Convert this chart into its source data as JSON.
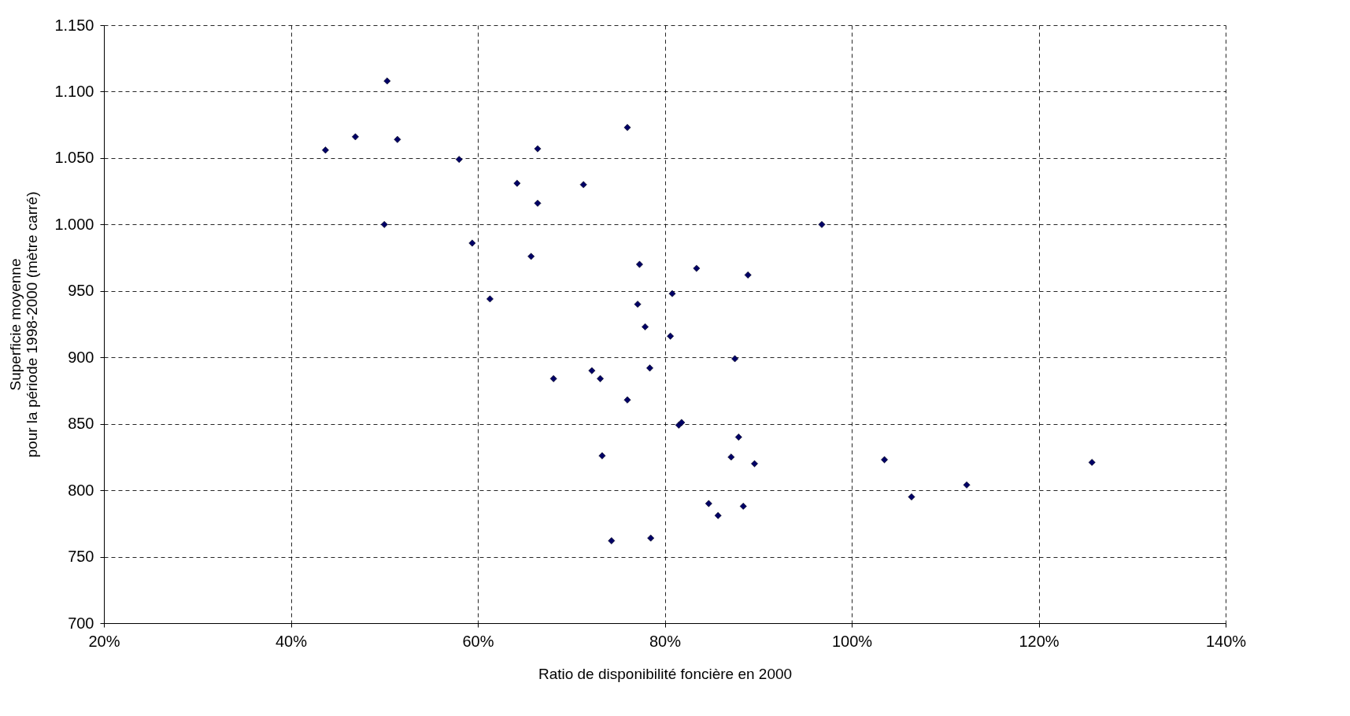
{
  "chart_data": {
    "type": "scatter",
    "xlabel": "Ratio de disponibilité foncière en 2000",
    "ylabel": "Superficie moyenne\npour la période 1998-2000 (mètre carré)",
    "x": [
      50.3,
      43.7,
      46.9,
      51.4,
      58.0,
      50.0,
      59.4,
      76.0,
      66.4,
      64.2,
      71.3,
      66.4,
      96.8,
      65.7,
      77.3,
      83.4,
      88.9,
      61.3,
      80.8,
      77.1,
      77.9,
      80.6,
      87.5,
      68.1,
      72.2,
      73.1,
      78.4,
      76.0,
      81.5,
      81.8,
      87.9,
      87.1,
      89.6,
      73.3,
      84.7,
      85.7,
      88.4,
      74.3,
      78.5,
      103.5,
      106.4,
      112.3,
      125.7
    ],
    "series": [
      {
        "color": "#000066",
        "values": [
          1108,
          1056,
          1066,
          1064,
          1049,
          1000,
          986,
          1073,
          1057,
          1031,
          1030,
          1016,
          1000,
          976,
          970,
          967,
          962,
          944,
          948,
          940,
          923,
          916,
          899,
          884,
          890,
          884,
          892,
          868,
          849,
          851,
          840,
          825,
          820,
          826,
          790,
          781,
          788,
          762,
          764,
          823,
          795,
          804,
          821
        ]
      }
    ],
    "xlim": [
      20,
      140
    ],
    "xticks": [
      {
        "value": 20,
        "label": "20%"
      },
      {
        "value": 40,
        "label": "40%"
      },
      {
        "value": 60,
        "label": "60%"
      },
      {
        "value": 80,
        "label": "80%"
      },
      {
        "value": 100,
        "label": "100%"
      },
      {
        "value": 120,
        "label": "120%"
      },
      {
        "value": 140,
        "label": "140%"
      }
    ],
    "ylim": [
      700,
      1150
    ],
    "yticks": [
      700,
      750,
      800,
      850,
      900,
      950,
      {
        "value": 1000,
        "label": "1.000"
      },
      {
        "value": 1050,
        "label": "1.050"
      },
      {
        "value": 1100,
        "label": "1.100"
      },
      {
        "value": 1150,
        "label": "1.150"
      }
    ],
    "grid": true,
    "marker": "diamond"
  }
}
